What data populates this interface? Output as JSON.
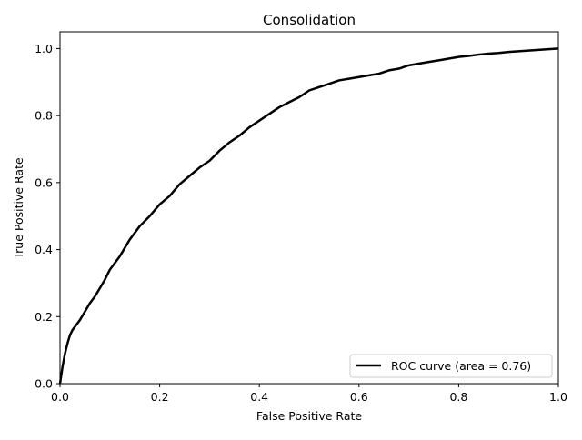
{
  "chart_data": {
    "type": "line",
    "title": "Consolidation",
    "xlabel": "False Positive Rate",
    "ylabel": "True Positive Rate",
    "xlim": [
      0.0,
      1.0
    ],
    "ylim": [
      0.0,
      1.05
    ],
    "x_ticks": [
      "0.0",
      "0.2",
      "0.4",
      "0.6",
      "0.8",
      "1.0"
    ],
    "y_ticks": [
      "0.0",
      "0.2",
      "0.4",
      "0.6",
      "0.8",
      "1.0"
    ],
    "grid": false,
    "legend_position": "lower right",
    "series": [
      {
        "name": "ROC curve (area = 0.76)",
        "color": "#000000",
        "x": [
          0.0,
          0.005,
          0.01,
          0.015,
          0.02,
          0.025,
          0.03,
          0.04,
          0.05,
          0.06,
          0.07,
          0.08,
          0.09,
          0.1,
          0.12,
          0.14,
          0.16,
          0.18,
          0.2,
          0.22,
          0.24,
          0.26,
          0.28,
          0.3,
          0.32,
          0.34,
          0.36,
          0.38,
          0.4,
          0.42,
          0.44,
          0.46,
          0.48,
          0.5,
          0.52,
          0.54,
          0.56,
          0.58,
          0.6,
          0.62,
          0.64,
          0.66,
          0.68,
          0.7,
          0.72,
          0.74,
          0.76,
          0.78,
          0.8,
          0.82,
          0.84,
          0.86,
          0.88,
          0.9,
          0.92,
          0.94,
          0.96,
          0.98,
          1.0
        ],
        "y": [
          0.0,
          0.05,
          0.09,
          0.12,
          0.145,
          0.16,
          0.17,
          0.19,
          0.215,
          0.24,
          0.26,
          0.285,
          0.31,
          0.34,
          0.38,
          0.43,
          0.47,
          0.5,
          0.535,
          0.56,
          0.595,
          0.62,
          0.645,
          0.665,
          0.695,
          0.72,
          0.74,
          0.765,
          0.785,
          0.805,
          0.825,
          0.84,
          0.855,
          0.875,
          0.885,
          0.895,
          0.905,
          0.91,
          0.915,
          0.92,
          0.925,
          0.935,
          0.94,
          0.95,
          0.955,
          0.96,
          0.965,
          0.97,
          0.975,
          0.978,
          0.982,
          0.985,
          0.987,
          0.99,
          0.992,
          0.994,
          0.996,
          0.998,
          1.0
        ]
      }
    ]
  }
}
